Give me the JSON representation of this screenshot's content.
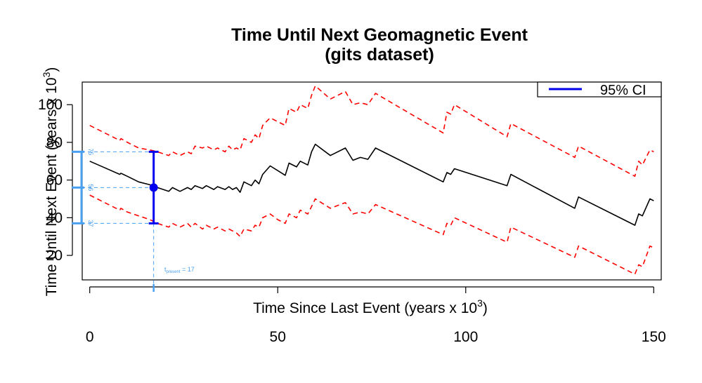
{
  "chart_data": {
    "type": "line",
    "title_line1": "Time Until Next Geomagnetic Event",
    "title_line2": "(gits dataset)",
    "xlabel_main": "Time Since Last Event (years x 10",
    "xlabel_exp": "3",
    "xlabel_close": ")",
    "ylabel_main": "Time Until Next Event (years x 10",
    "ylabel_exp": "3",
    "ylabel_close": ")",
    "xlim": [
      -2,
      152
    ],
    "ylim": [
      7,
      112
    ],
    "x_ticks": [
      0,
      50,
      100,
      150
    ],
    "y_ticks": [
      20,
      40,
      60,
      80,
      100
    ],
    "legend": {
      "label": "95% CI",
      "position": "top-right"
    },
    "present": {
      "label_t": "t",
      "label_sub": "present",
      "label_rest": " = 17",
      "x": 17
    },
    "estimate": {
      "x": 17,
      "y": 56,
      "lower": 37,
      "upper": 75,
      "y_labels": [
        "75",
        "56",
        "37"
      ]
    },
    "colors": {
      "mean": "#000000",
      "ci": "#ff0000",
      "estimate": "#0000ee",
      "marker": "#4aa0f0"
    },
    "series": [
      {
        "name": "mean",
        "points": [
          [
            0,
            70
          ],
          [
            4,
            66.5
          ],
          [
            8,
            63
          ],
          [
            8.3,
            63.6
          ],
          [
            10,
            62
          ],
          [
            13,
            59
          ],
          [
            16,
            57.5
          ],
          [
            18,
            56
          ],
          [
            21,
            54
          ],
          [
            22,
            56
          ],
          [
            24,
            54
          ],
          [
            26,
            56
          ],
          [
            27,
            55
          ],
          [
            28,
            57
          ],
          [
            30,
            55.5
          ],
          [
            31,
            57
          ],
          [
            33,
            55
          ],
          [
            34,
            56.5
          ],
          [
            36,
            55
          ],
          [
            37,
            56.5
          ],
          [
            38,
            55
          ],
          [
            39,
            56
          ],
          [
            40,
            53.5
          ],
          [
            41,
            59
          ],
          [
            43,
            57
          ],
          [
            44,
            60
          ],
          [
            45,
            58
          ],
          [
            46,
            63
          ],
          [
            48,
            67.5
          ],
          [
            50,
            65
          ],
          [
            52,
            62.5
          ],
          [
            53,
            69
          ],
          [
            55,
            67
          ],
          [
            56,
            70
          ],
          [
            58,
            68
          ],
          [
            59,
            75
          ],
          [
            60,
            79
          ],
          [
            64,
            73
          ],
          [
            68,
            77
          ],
          [
            70,
            70.5
          ],
          [
            72,
            72
          ],
          [
            74,
            71
          ],
          [
            76,
            77
          ],
          [
            94,
            59
          ],
          [
            95,
            64
          ],
          [
            96,
            63
          ],
          [
            97,
            66
          ],
          [
            111,
            57
          ],
          [
            112,
            63
          ],
          [
            129,
            45
          ],
          [
            130,
            51
          ],
          [
            145,
            36
          ],
          [
            146,
            42
          ],
          [
            147,
            41
          ],
          [
            149,
            50
          ],
          [
            150,
            49
          ]
        ]
      },
      {
        "name": "upper_ci",
        "points": [
          [
            0,
            89
          ],
          [
            4,
            85
          ],
          [
            8,
            81
          ],
          [
            8.3,
            82
          ],
          [
            10,
            80
          ],
          [
            13,
            77
          ],
          [
            16,
            76
          ],
          [
            18,
            75
          ],
          [
            21,
            73
          ],
          [
            22,
            75
          ],
          [
            24,
            73
          ],
          [
            26,
            75
          ],
          [
            27,
            74
          ],
          [
            28,
            78
          ],
          [
            30,
            77
          ],
          [
            31,
            78
          ],
          [
            33,
            76
          ],
          [
            34,
            77
          ],
          [
            36,
            75
          ],
          [
            37,
            78
          ],
          [
            38,
            76
          ],
          [
            39,
            77
          ],
          [
            40,
            76
          ],
          [
            41,
            82
          ],
          [
            43,
            80
          ],
          [
            44,
            84
          ],
          [
            45,
            82
          ],
          [
            46,
            89
          ],
          [
            48,
            93
          ],
          [
            50,
            91
          ],
          [
            52,
            89
          ],
          [
            53,
            98
          ],
          [
            55,
            96
          ],
          [
            56,
            100
          ],
          [
            58,
            98
          ],
          [
            59,
            105
          ],
          [
            60,
            110
          ],
          [
            64,
            103
          ],
          [
            68,
            107
          ],
          [
            70,
            100
          ],
          [
            72,
            101
          ],
          [
            74,
            100
          ],
          [
            76,
            106
          ],
          [
            94,
            85
          ],
          [
            95,
            96
          ],
          [
            96,
            95
          ],
          [
            97,
            100
          ],
          [
            111,
            83
          ],
          [
            112,
            90
          ],
          [
            129,
            72
          ],
          [
            130,
            78
          ],
          [
            145,
            62
          ],
          [
            146,
            70
          ],
          [
            147,
            68
          ],
          [
            149,
            76
          ],
          [
            150,
            75
          ]
        ]
      },
      {
        "name": "lower_ci",
        "points": [
          [
            0,
            52
          ],
          [
            4,
            48
          ],
          [
            8,
            44
          ],
          [
            8.3,
            45
          ],
          [
            10,
            43
          ],
          [
            13,
            41
          ],
          [
            16,
            39
          ],
          [
            18,
            37
          ],
          [
            21,
            35
          ],
          [
            22,
            37
          ],
          [
            24,
            35
          ],
          [
            26,
            37
          ],
          [
            27,
            35
          ],
          [
            28,
            37
          ],
          [
            30,
            34
          ],
          [
            31,
            36
          ],
          [
            33,
            34
          ],
          [
            34,
            35
          ],
          [
            36,
            33
          ],
          [
            37,
            34
          ],
          [
            38,
            33
          ],
          [
            39,
            32
          ],
          [
            40,
            30
          ],
          [
            41,
            34
          ],
          [
            43,
            33
          ],
          [
            44,
            36
          ],
          [
            45,
            35
          ],
          [
            46,
            40
          ],
          [
            48,
            42
          ],
          [
            50,
            39
          ],
          [
            52,
            37
          ],
          [
            53,
            42
          ],
          [
            55,
            40
          ],
          [
            56,
            44
          ],
          [
            58,
            42
          ],
          [
            59,
            46
          ],
          [
            60,
            50
          ],
          [
            64,
            45
          ],
          [
            68,
            48
          ],
          [
            70,
            42
          ],
          [
            72,
            43
          ],
          [
            74,
            42
          ],
          [
            76,
            47
          ],
          [
            94,
            31
          ],
          [
            95,
            37
          ],
          [
            96,
            36
          ],
          [
            97,
            40
          ],
          [
            111,
            27
          ],
          [
            112,
            35
          ],
          [
            129,
            19
          ],
          [
            130,
            25
          ],
          [
            145,
            10
          ],
          [
            146,
            15
          ],
          [
            147,
            14
          ],
          [
            149,
            25
          ],
          [
            150,
            24
          ]
        ]
      }
    ]
  }
}
